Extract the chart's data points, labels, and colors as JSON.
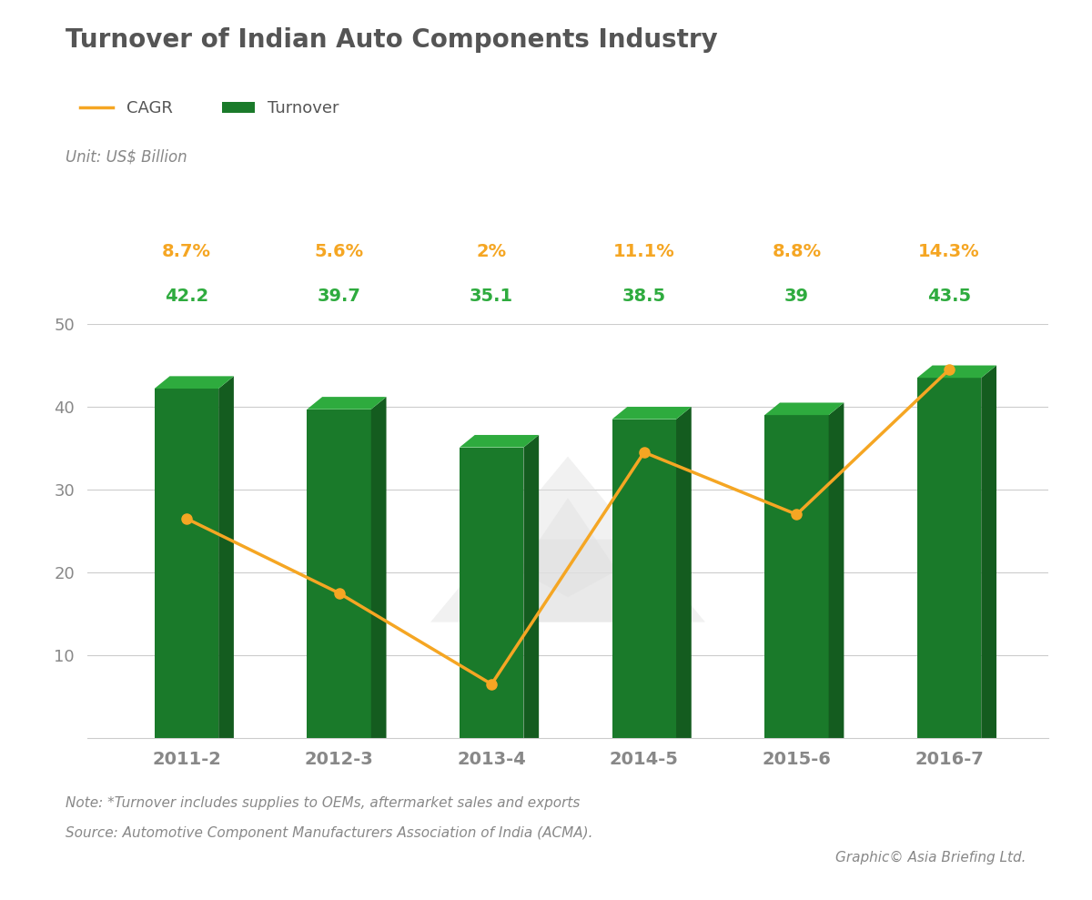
{
  "title": "Turnover of Indian Auto Components Industry",
  "unit_label": "Unit: US$ Billion",
  "categories": [
    "2011-2",
    "2012-3",
    "2013-4",
    "2014-5",
    "2015-6",
    "2016-7"
  ],
  "turnover": [
    42.2,
    39.7,
    35.1,
    38.5,
    39.0,
    43.5
  ],
  "cagr": [
    26.5,
    17.5,
    6.5,
    34.5,
    27.0,
    44.5
  ],
  "cagr_labels": [
    "8.7%",
    "5.6%",
    "2%",
    "11.1%",
    "8.8%",
    "14.3%"
  ],
  "turnover_labels": [
    "42.2",
    "39.7",
    "35.1",
    "38.5",
    "39",
    "43.5"
  ],
  "bar_face_color": "#1a7a2a",
  "bar_side_color": "#145c1f",
  "bar_top_color": "#2eab3e",
  "line_color": "#f5a623",
  "marker_color": "#f5a623",
  "cagr_label_color": "#f5a623",
  "turnover_label_color": "#2eab3e",
  "title_color": "#555555",
  "text_color": "#888888",
  "note_text": "Note: *Turnover includes supplies to OEMs, aftermarket sales and exports",
  "source_text": "Source: Automotive Component Manufacturers Association of India (ACMA).",
  "credit_text": "Graphic© Asia Briefing Ltd.",
  "legend_cagr": "CAGR",
  "legend_turnover": "Turnover",
  "ylim": [
    0,
    50
  ],
  "yticks": [
    10,
    20,
    30,
    40,
    50
  ],
  "background_color": "#ffffff",
  "watermark_color": "#e0e0e0"
}
